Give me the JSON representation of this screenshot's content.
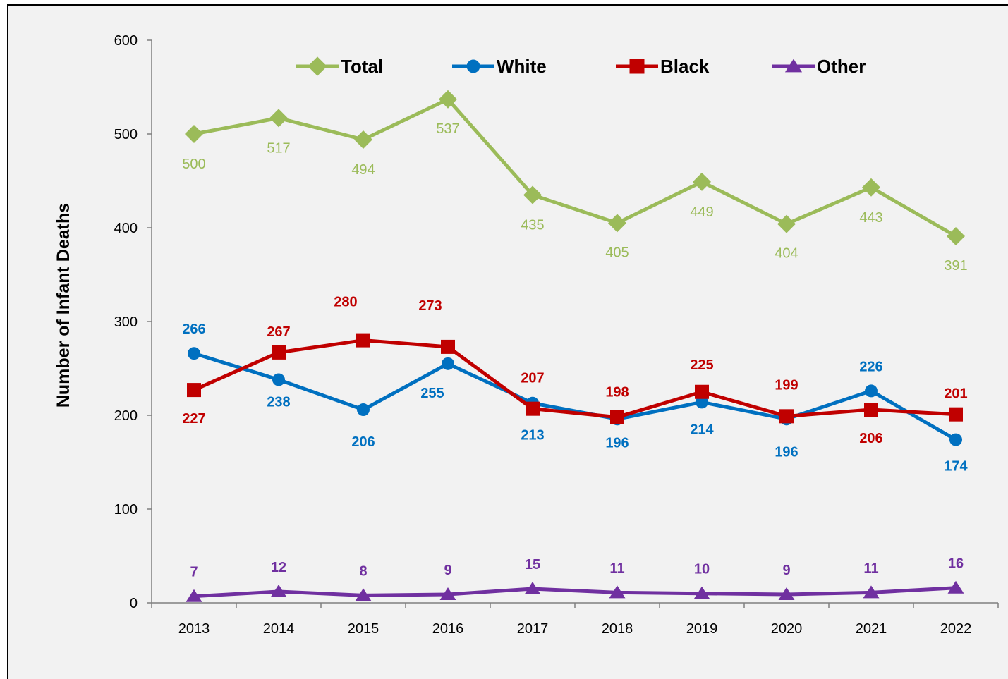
{
  "chart_data": {
    "type": "line",
    "ylabel": "Number of Infant Deaths",
    "xlabel": "",
    "ylim": [
      0,
      600
    ],
    "yticks": [
      0,
      100,
      200,
      300,
      400,
      500,
      600
    ],
    "grid": false,
    "legend_position": "top",
    "categories": [
      "2013",
      "2014",
      "2015",
      "2016",
      "2017",
      "2018",
      "2019",
      "2020",
      "2021",
      "2022"
    ],
    "series": [
      {
        "name": "Total",
        "color": "#9bbb59",
        "marker": "diamond",
        "label_bold": false,
        "values": [
          500,
          517,
          494,
          537,
          435,
          405,
          449,
          404,
          443,
          391
        ]
      },
      {
        "name": "White",
        "color": "#0070c0",
        "marker": "circle",
        "label_bold": true,
        "values": [
          266,
          238,
          206,
          255,
          213,
          196,
          214,
          196,
          226,
          174
        ]
      },
      {
        "name": "Black",
        "color": "#c00000",
        "marker": "square",
        "label_bold": true,
        "values": [
          227,
          267,
          280,
          273,
          207,
          198,
          225,
          199,
          206,
          201
        ]
      },
      {
        "name": "Other",
        "color": "#7030a0",
        "marker": "triangle",
        "label_bold": true,
        "values": [
          7,
          12,
          8,
          9,
          15,
          11,
          10,
          9,
          11,
          16
        ]
      }
    ]
  }
}
